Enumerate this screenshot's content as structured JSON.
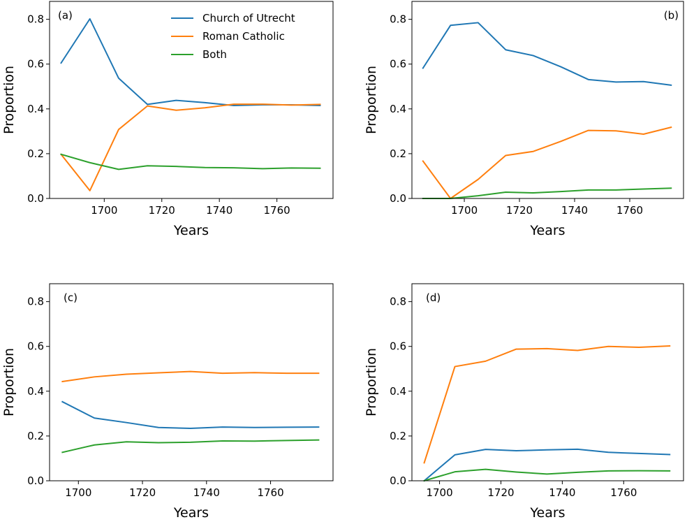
{
  "chart_data": [
    {
      "type": "line",
      "panel_label": "(a)",
      "xlabel": "Years",
      "ylabel": "Proportion",
      "xlim": [
        1681,
        1779.5
      ],
      "ylim": [
        0,
        0.88
      ],
      "xticks": [
        1700,
        1720,
        1740,
        1760
      ],
      "yticks": [
        0.0,
        0.2,
        0.4,
        0.6,
        0.8
      ],
      "legend": "top-right",
      "x": [
        1685,
        1695,
        1705,
        1715,
        1725,
        1735,
        1745,
        1755,
        1765,
        1775
      ],
      "series": [
        {
          "name": "Church of Utrecht",
          "color": "#1f77b4",
          "values": [
            0.605,
            0.802,
            0.537,
            0.42,
            0.438,
            0.428,
            0.415,
            0.418,
            0.418,
            0.415
          ]
        },
        {
          "name": "Roman Catholic",
          "color": "#ff7f0e",
          "values": [
            0.197,
            0.035,
            0.308,
            0.413,
            0.394,
            0.405,
            0.421,
            0.421,
            0.417,
            0.42
          ]
        },
        {
          "name": "Both",
          "color": "#2ca02c",
          "values": [
            0.197,
            0.16,
            0.13,
            0.146,
            0.143,
            0.138,
            0.137,
            0.133,
            0.136,
            0.135
          ]
        }
      ]
    },
    {
      "type": "line",
      "panel_label": "(b)",
      "xlabel": "Years",
      "ylabel": "Proportion",
      "xlim": [
        1681,
        1779.5
      ],
      "ylim": [
        0,
        0.88
      ],
      "xticks": [
        1700,
        1720,
        1740,
        1760
      ],
      "yticks": [
        0.0,
        0.2,
        0.4,
        0.6,
        0.8
      ],
      "x": [
        1685,
        1695,
        1705,
        1715,
        1725,
        1735,
        1745,
        1755,
        1765,
        1775
      ],
      "series": [
        {
          "color": "#1f77b4",
          "values": [
            0.582,
            0.773,
            0.785,
            0.664,
            0.638,
            0.588,
            0.531,
            0.52,
            0.522,
            0.506
          ]
        },
        {
          "color": "#ff7f0e",
          "values": [
            0.167,
            0.0,
            0.085,
            0.192,
            0.21,
            0.255,
            0.304,
            0.302,
            0.287,
            0.318
          ]
        },
        {
          "color": "#2ca02c",
          "values": [
            0.0,
            0.0,
            0.012,
            0.028,
            0.025,
            0.031,
            0.038,
            0.038,
            0.042,
            0.046
          ]
        }
      ]
    },
    {
      "type": "line",
      "panel_label": "(c)",
      "xlabel": "Years",
      "ylabel": "Proportion",
      "xlim": [
        1691,
        1779.5
      ],
      "ylim": [
        0,
        0.88
      ],
      "xticks": [
        1700,
        1720,
        1740,
        1760
      ],
      "yticks": [
        0.0,
        0.2,
        0.4,
        0.6,
        0.8
      ],
      "x": [
        1695,
        1705,
        1715,
        1725,
        1735,
        1745,
        1755,
        1765,
        1775
      ],
      "series": [
        {
          "color": "#1f77b4",
          "values": [
            0.353,
            0.28,
            0.26,
            0.238,
            0.234,
            0.24,
            0.238,
            0.239,
            0.24
          ]
        },
        {
          "color": "#ff7f0e",
          "values": [
            0.443,
            0.464,
            0.476,
            0.482,
            0.488,
            0.48,
            0.483,
            0.48,
            0.48
          ]
        },
        {
          "color": "#2ca02c",
          "values": [
            0.127,
            0.16,
            0.174,
            0.17,
            0.172,
            0.178,
            0.177,
            0.18,
            0.182
          ]
        }
      ]
    },
    {
      "type": "line",
      "panel_label": "(d)",
      "xlabel": "Years",
      "ylabel": "Proportion",
      "xlim": [
        1691,
        1779.5
      ],
      "ylim": [
        0,
        0.88
      ],
      "xticks": [
        1700,
        1720,
        1740,
        1760
      ],
      "yticks": [
        0.0,
        0.2,
        0.4,
        0.6,
        0.8
      ],
      "x": [
        1695,
        1705,
        1715,
        1725,
        1735,
        1745,
        1755,
        1765,
        1775
      ],
      "series": [
        {
          "color": "#1f77b4",
          "values": [
            0.0,
            0.116,
            0.14,
            0.134,
            0.138,
            0.141,
            0.127,
            0.122,
            0.117
          ]
        },
        {
          "color": "#ff7f0e",
          "values": [
            0.08,
            0.51,
            0.534,
            0.588,
            0.59,
            0.582,
            0.6,
            0.596,
            0.602
          ]
        },
        {
          "color": "#2ca02c",
          "values": [
            0.0,
            0.04,
            0.051,
            0.039,
            0.03,
            0.038,
            0.044,
            0.045,
            0.044
          ]
        }
      ]
    }
  ]
}
